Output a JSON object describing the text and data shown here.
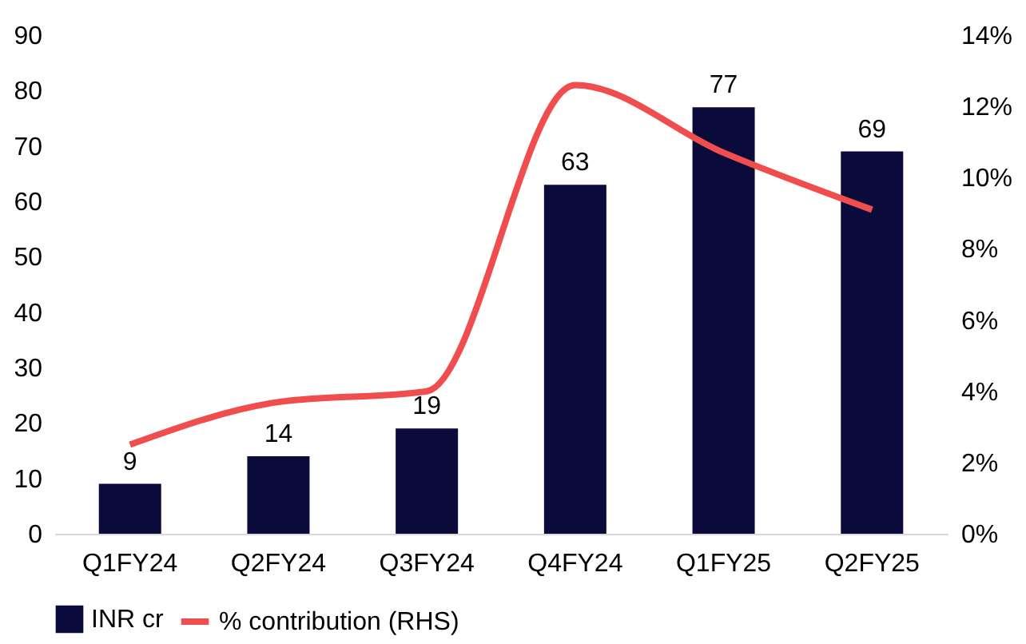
{
  "chart_data": {
    "type": "bar",
    "categories": [
      "Q1FY24",
      "Q2FY24",
      "Q3FY24",
      "Q4FY24",
      "Q1FY25",
      "Q2FY25"
    ],
    "series": [
      {
        "name": "INR cr",
        "color": "#0b0b3b",
        "values": [
          9,
          14,
          19,
          63,
          77,
          69
        ],
        "value_labels": [
          "9",
          "14",
          "19",
          "63",
          "77",
          "69"
        ]
      },
      {
        "name": "% contribution (RHS)",
        "type": "line",
        "axis": "y2",
        "color": "#f04e4e",
        "values": [
          2.5,
          3.7,
          4.0,
          12.6,
          10.7,
          9.1
        ]
      }
    ],
    "ylim": [
      0,
      90
    ],
    "yticks": [
      0,
      10,
      20,
      30,
      40,
      50,
      60,
      70,
      80,
      90
    ],
    "y2lim": [
      0,
      14
    ],
    "y2ticks": [
      {
        "value": 0,
        "label": "0%"
      },
      {
        "value": 2,
        "label": "2%"
      },
      {
        "value": 4,
        "label": "4%"
      },
      {
        "value": 6,
        "label": "6%"
      },
      {
        "value": 8,
        "label": "8%"
      },
      {
        "value": 10,
        "label": "10%"
      },
      {
        "value": 12,
        "label": "12%"
      },
      {
        "value": 14,
        "label": "14%"
      }
    ],
    "grid": false,
    "legend": "bottom",
    "marker": "none",
    "line_style": "solid"
  }
}
